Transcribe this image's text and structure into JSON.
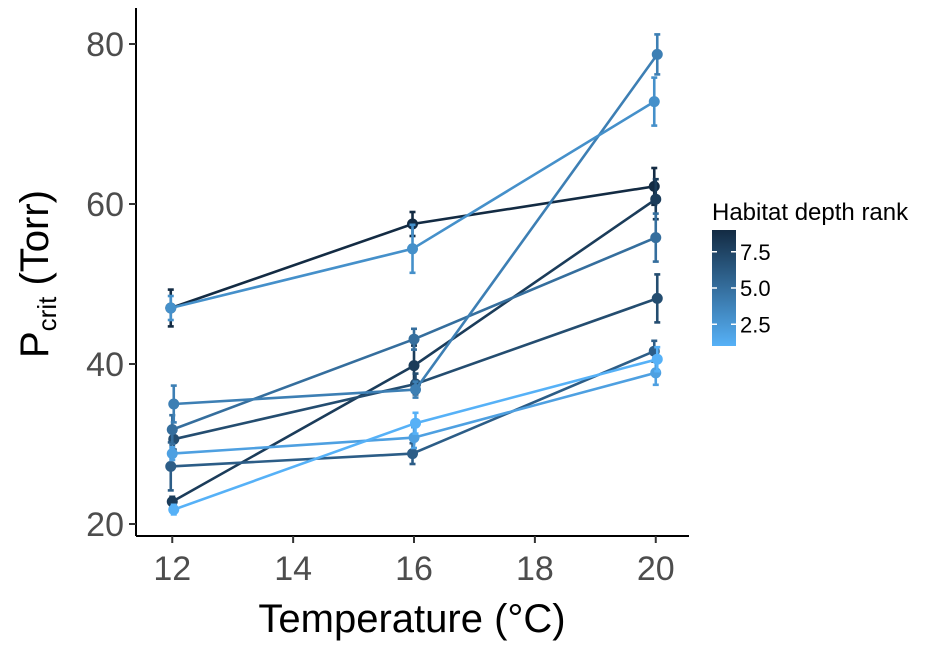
{
  "chart_data": {
    "type": "line",
    "xlabel": "Temperature (°C)",
    "ylabel_main": "P",
    "ylabel_sub": "crit",
    "ylabel_rest": " (Torr)",
    "x_ticks": [
      12,
      14,
      16,
      18,
      20
    ],
    "y_ticks": [
      20,
      40,
      60,
      80
    ],
    "xlim": [
      11.4,
      20.55
    ],
    "ylim": [
      18.5,
      84.5
    ],
    "legend": {
      "title": "Habitat depth rank",
      "ticks": [
        7.5,
        5.0,
        2.5
      ],
      "tick_labels": [
        "7.5",
        "5.0",
        "2.5"
      ],
      "range": [
        1,
        9
      ],
      "placement": "right",
      "color_low": "#56b1f7",
      "color_high": "#132b43"
    },
    "series": [
      {
        "rank": 9,
        "points": [
          {
            "x": 12,
            "y": 47.0,
            "err": 2.3
          },
          {
            "x": 16,
            "y": 57.5,
            "err": 1.5
          },
          {
            "x": 20,
            "y": 62.2,
            "err": 2.3
          }
        ]
      },
      {
        "rank": 8,
        "points": [
          {
            "x": 12,
            "y": 22.8,
            "err": 0.6
          },
          {
            "x": 16,
            "y": 39.8,
            "err": 2.5
          },
          {
            "x": 20,
            "y": 60.6,
            "err": 2.5
          }
        ]
      },
      {
        "rank": 7,
        "points": [
          {
            "x": 12,
            "y": 30.6,
            "err": 1.3
          },
          {
            "x": 16,
            "y": 37.5,
            "err": 1.3
          },
          {
            "x": 20,
            "y": 48.2,
            "err": 3.0
          }
        ]
      },
      {
        "rank": 6,
        "points": [
          {
            "x": 12,
            "y": 27.2,
            "err": 3.0
          },
          {
            "x": 16,
            "y": 28.8,
            "err": 1.3
          },
          {
            "x": 20,
            "y": 41.6,
            "err": 1.3
          }
        ]
      },
      {
        "rank": 5,
        "points": [
          {
            "x": 12,
            "y": 31.8,
            "err": 1.8
          },
          {
            "x": 16,
            "y": 43.1,
            "err": 1.3
          },
          {
            "x": 20,
            "y": 55.8,
            "err": 3.0
          }
        ]
      },
      {
        "rank": 4,
        "points": [
          {
            "x": 12,
            "y": 35.0,
            "err": 2.3
          },
          {
            "x": 16,
            "y": 36.8,
            "err": 1.0
          },
          {
            "x": 20,
            "y": 78.7,
            "err": 2.5
          }
        ]
      },
      {
        "rank": 3,
        "points": [
          {
            "x": 12,
            "y": 47.0,
            "err": 1.5
          },
          {
            "x": 16,
            "y": 54.4,
            "err": 3.0
          },
          {
            "x": 20,
            "y": 72.8,
            "err": 3.0
          }
        ]
      },
      {
        "rank": 2,
        "points": [
          {
            "x": 12,
            "y": 28.8,
            "err": 0.8
          },
          {
            "x": 16,
            "y": 30.8,
            "err": 1.3
          },
          {
            "x": 20,
            "y": 38.9,
            "err": 1.5
          }
        ]
      },
      {
        "rank": 1,
        "points": [
          {
            "x": 12,
            "y": 21.8,
            "err": 0.6
          },
          {
            "x": 16,
            "y": 32.6,
            "err": 1.3
          },
          {
            "x": 20,
            "y": 40.6,
            "err": 1.5
          }
        ]
      }
    ]
  }
}
